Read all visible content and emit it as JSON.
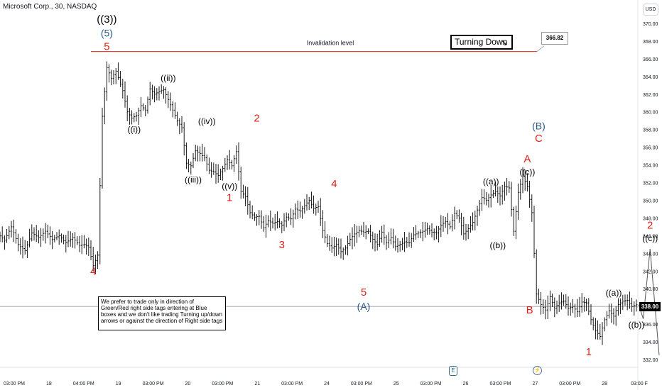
{
  "header": {
    "title": "Microsoft Corp., 30, NASDAQ",
    "currency": "USD"
  },
  "chart_data": {
    "type": "candlestick",
    "symbol": "Microsoft Corp.",
    "interval": "30",
    "exchange": "NASDAQ",
    "ylim": [
      331,
      371
    ],
    "y_ticks": [
      332,
      334,
      336,
      338,
      340,
      342,
      344,
      346,
      348,
      350,
      352,
      354,
      356,
      358,
      360,
      362,
      364,
      366,
      368,
      370
    ],
    "y_tick_labels": [
      "332.00",
      "334.00",
      "336.00",
      "338.00",
      "340.00",
      "342.00",
      "344.00",
      "346.00",
      "348.00",
      "350.00",
      "352.00",
      "354.00",
      "356.00",
      "358.00",
      "360.00",
      "362.00",
      "364.00",
      "366.00",
      "368.00",
      "370.00"
    ],
    "x_tick_labels": [
      "03:00 PM",
      "18",
      "04:00 PM",
      "19",
      "03:00 PM",
      "20",
      "03:00 PM",
      "21",
      "03:00 PM",
      "24",
      "03:00 PM",
      "25",
      "03:00 PM",
      "26",
      "03:00 PM",
      "27",
      "03:00 PM",
      "28",
      "03:00 F"
    ],
    "price_path": [
      [
        0,
        346.2
      ],
      [
        3,
        345.5
      ],
      [
        6,
        347.0
      ],
      [
        9,
        345.0
      ],
      [
        12,
        344.3
      ],
      [
        15,
        346.3
      ],
      [
        18,
        345.8
      ],
      [
        21,
        346.5
      ],
      [
        24,
        345.6
      ],
      [
        27,
        346.0
      ],
      [
        30,
        345.2
      ],
      [
        33,
        345.8
      ],
      [
        36,
        344.9
      ],
      [
        38,
        345.0
      ],
      [
        40,
        344.7
      ],
      [
        42,
        342.6
      ],
      [
        44,
        343.8
      ],
      [
        46,
        359.5
      ],
      [
        48,
        365.0
      ],
      [
        50,
        363.8
      ],
      [
        52,
        364.6
      ],
      [
        55,
        362.4
      ],
      [
        57,
        360.0
      ],
      [
        59,
        359.3
      ],
      [
        61,
        359.6
      ],
      [
        63,
        360.7
      ],
      [
        65,
        360.2
      ],
      [
        67,
        362.6
      ],
      [
        69,
        362.0
      ],
      [
        71,
        362.3
      ],
      [
        73,
        362.5
      ],
      [
        75,
        361.4
      ],
      [
        77,
        360.2
      ],
      [
        79,
        359.0
      ],
      [
        81,
        358.2
      ],
      [
        83,
        354.2
      ],
      [
        85,
        353.9
      ],
      [
        87,
        355.6
      ],
      [
        89,
        355.3
      ],
      [
        91,
        354.8
      ],
      [
        93,
        353.4
      ],
      [
        95,
        353.2
      ],
      [
        97,
        352.8
      ],
      [
        99,
        353.6
      ],
      [
        101,
        354.6
      ],
      [
        103,
        353.9
      ],
      [
        105,
        355.5
      ],
      [
        107,
        351.0
      ],
      [
        109,
        350.4
      ],
      [
        111,
        348.6
      ],
      [
        113,
        348.1
      ],
      [
        115,
        348.2
      ],
      [
        117,
        346.9
      ],
      [
        119,
        347.7
      ],
      [
        121,
        347.4
      ],
      [
        123,
        347.6
      ],
      [
        125,
        347.2
      ],
      [
        127,
        348.1
      ],
      [
        129,
        347.9
      ],
      [
        131,
        349.0
      ],
      [
        133,
        348.8
      ],
      [
        135,
        349.4
      ],
      [
        137,
        350.0
      ],
      [
        139,
        349.1
      ],
      [
        141,
        349.3
      ],
      [
        143,
        346.6
      ],
      [
        145,
        345.1
      ],
      [
        147,
        344.6
      ],
      [
        149,
        345.0
      ],
      [
        151,
        344.2
      ],
      [
        153,
        344.6
      ],
      [
        155,
        345.6
      ],
      [
        157,
        346.2
      ],
      [
        159,
        346.6
      ],
      [
        161,
        346.4
      ],
      [
        163,
        346.5
      ],
      [
        165,
        345.6
      ],
      [
        167,
        345.0
      ],
      [
        169,
        346.4
      ],
      [
        171,
        345.2
      ],
      [
        173,
        345.8
      ],
      [
        175,
        344.8
      ],
      [
        177,
        345.0
      ],
      [
        179,
        345.3
      ],
      [
        181,
        345.2
      ],
      [
        183,
        346.1
      ],
      [
        185,
        346.3
      ],
      [
        187,
        346.5
      ],
      [
        189,
        346.8
      ],
      [
        191,
        346.4
      ],
      [
        193,
        346.3
      ],
      [
        195,
        347.2
      ],
      [
        197,
        347.6
      ],
      [
        199,
        347.0
      ],
      [
        201,
        348.5
      ],
      [
        203,
        348.0
      ],
      [
        205,
        346.2
      ],
      [
        207,
        346.8
      ],
      [
        209,
        347.5
      ],
      [
        211,
        348.9
      ],
      [
        213,
        350.3
      ],
      [
        215,
        350.0
      ],
      [
        217,
        350.6
      ],
      [
        219,
        351.0
      ],
      [
        221,
        350.5
      ],
      [
        223,
        351.6
      ],
      [
        225,
        351.4
      ],
      [
        227,
        346.5
      ],
      [
        229,
        350.9
      ],
      [
        231,
        352.7
      ],
      [
        233,
        351.6
      ],
      [
        235,
        348.6
      ],
      [
        237,
        339.4
      ],
      [
        239,
        338.2
      ],
      [
        241,
        337.6
      ],
      [
        243,
        339.1
      ],
      [
        245,
        337.8
      ],
      [
        247,
        338.4
      ],
      [
        249,
        338.6
      ],
      [
        251,
        337.8
      ],
      [
        253,
        338.0
      ],
      [
        255,
        337.4
      ],
      [
        257,
        338.5
      ],
      [
        259,
        338.4
      ],
      [
        261,
        336.5
      ],
      [
        263,
        335.3
      ],
      [
        265,
        334.6
      ],
      [
        267,
        336.5
      ],
      [
        269,
        337.5
      ],
      [
        271,
        336.9
      ],
      [
        273,
        338.2
      ],
      [
        275,
        338.6
      ],
      [
        277,
        338.7
      ],
      [
        279,
        338.0
      ],
      [
        281,
        338.2
      ]
    ],
    "projection_path": [
      [
        281,
        338.2
      ],
      [
        283,
        336.6
      ],
      [
        286,
        344.5
      ],
      [
        290,
        332.5
      ]
    ],
    "last_price": "338.00",
    "current_price_level": 338.0,
    "invalidation": {
      "level": 366.82,
      "label": "366.82",
      "text": "Invalidation level"
    },
    "wave_labels": [
      {
        "text": "((3))",
        "x": 47,
        "y": 370.1,
        "color": "#000000",
        "size": 15
      },
      {
        "text": "(5)",
        "x": 47,
        "y": 368.5,
        "color": "#2a5588",
        "size": 14
      },
      {
        "text": "5",
        "x": 47,
        "y": 367.0,
        "color": "#e0201a",
        "size": 15
      },
      {
        "text": "((i))",
        "x": 59,
        "y": 357.7,
        "color": "#000000",
        "size": 12
      },
      {
        "text": "((ii))",
        "x": 74,
        "y": 363.5,
        "color": "#000000",
        "size": 12
      },
      {
        "text": "((iii))",
        "x": 85,
        "y": 352.0,
        "color": "#000000",
        "size": 12
      },
      {
        "text": "((iv))",
        "x": 91,
        "y": 358.6,
        "color": "#000000",
        "size": 12
      },
      {
        "text": "((v))",
        "x": 101,
        "y": 351.3,
        "color": "#000000",
        "size": 12
      },
      {
        "text": "1",
        "x": 101,
        "y": 349.9,
        "color": "#e0201a",
        "size": 15
      },
      {
        "text": "2",
        "x": 113,
        "y": 358.9,
        "color": "#e0201a",
        "size": 15
      },
      {
        "text": "3",
        "x": 124,
        "y": 344.6,
        "color": "#e0201a",
        "size": 15
      },
      {
        "text": "4",
        "x": 147,
        "y": 351.5,
        "color": "#e0201a",
        "size": 15
      },
      {
        "text": "5",
        "x": 160,
        "y": 339.2,
        "color": "#e0201a",
        "size": 15
      },
      {
        "text": "(A)",
        "x": 160,
        "y": 337.6,
        "color": "#2a5588",
        "size": 14
      },
      {
        "text": "4",
        "x": 41,
        "y": 341.6,
        "color": "#e0201a",
        "size": 15
      },
      {
        "text": "((a))",
        "x": 216,
        "y": 351.8,
        "color": "#000000",
        "size": 12
      },
      {
        "text": "((b))",
        "x": 219,
        "y": 344.6,
        "color": "#000000",
        "size": 12
      },
      {
        "text": "(B)",
        "x": 237,
        "y": 358.0,
        "color": "#2a5588",
        "size": 14
      },
      {
        "text": "C",
        "x": 237,
        "y": 356.6,
        "color": "#e0201a",
        "size": 15
      },
      {
        "text": "A",
        "x": 232,
        "y": 354.3,
        "color": "#e0201a",
        "size": 15
      },
      {
        "text": "((c))",
        "x": 232,
        "y": 352.9,
        "color": "#000000",
        "size": 12
      },
      {
        "text": "B",
        "x": 233,
        "y": 337.2,
        "color": "#e0201a",
        "size": 15
      },
      {
        "text": "1",
        "x": 259,
        "y": 332.5,
        "color": "#e0201a",
        "size": 15
      },
      {
        "text": "((a))",
        "x": 270,
        "y": 339.2,
        "color": "#000000",
        "size": 12
      },
      {
        "text": "((b))",
        "x": 280,
        "y": 335.6,
        "color": "#000000",
        "size": 12
      },
      {
        "text": "2",
        "x": 286,
        "y": 346.8,
        "color": "#e0201a",
        "size": 15
      },
      {
        "text": "((c))",
        "x": 286,
        "y": 345.4,
        "color": "#000000",
        "size": 12
      }
    ],
    "annotations": {
      "turning_text": "Turning Down",
      "note_text": "We prefer to trade only in direction of Green/Red right side tags entering at Blue boxes and we don't like trading Turning up/down arrows or against the direction of Right side tags",
      "earnings_badge": "E"
    },
    "colors": {
      "bars": "#000000",
      "invalidation": "#e0201a",
      "wave_red": "#e0201a",
      "wave_blue": "#2a5588"
    }
  }
}
